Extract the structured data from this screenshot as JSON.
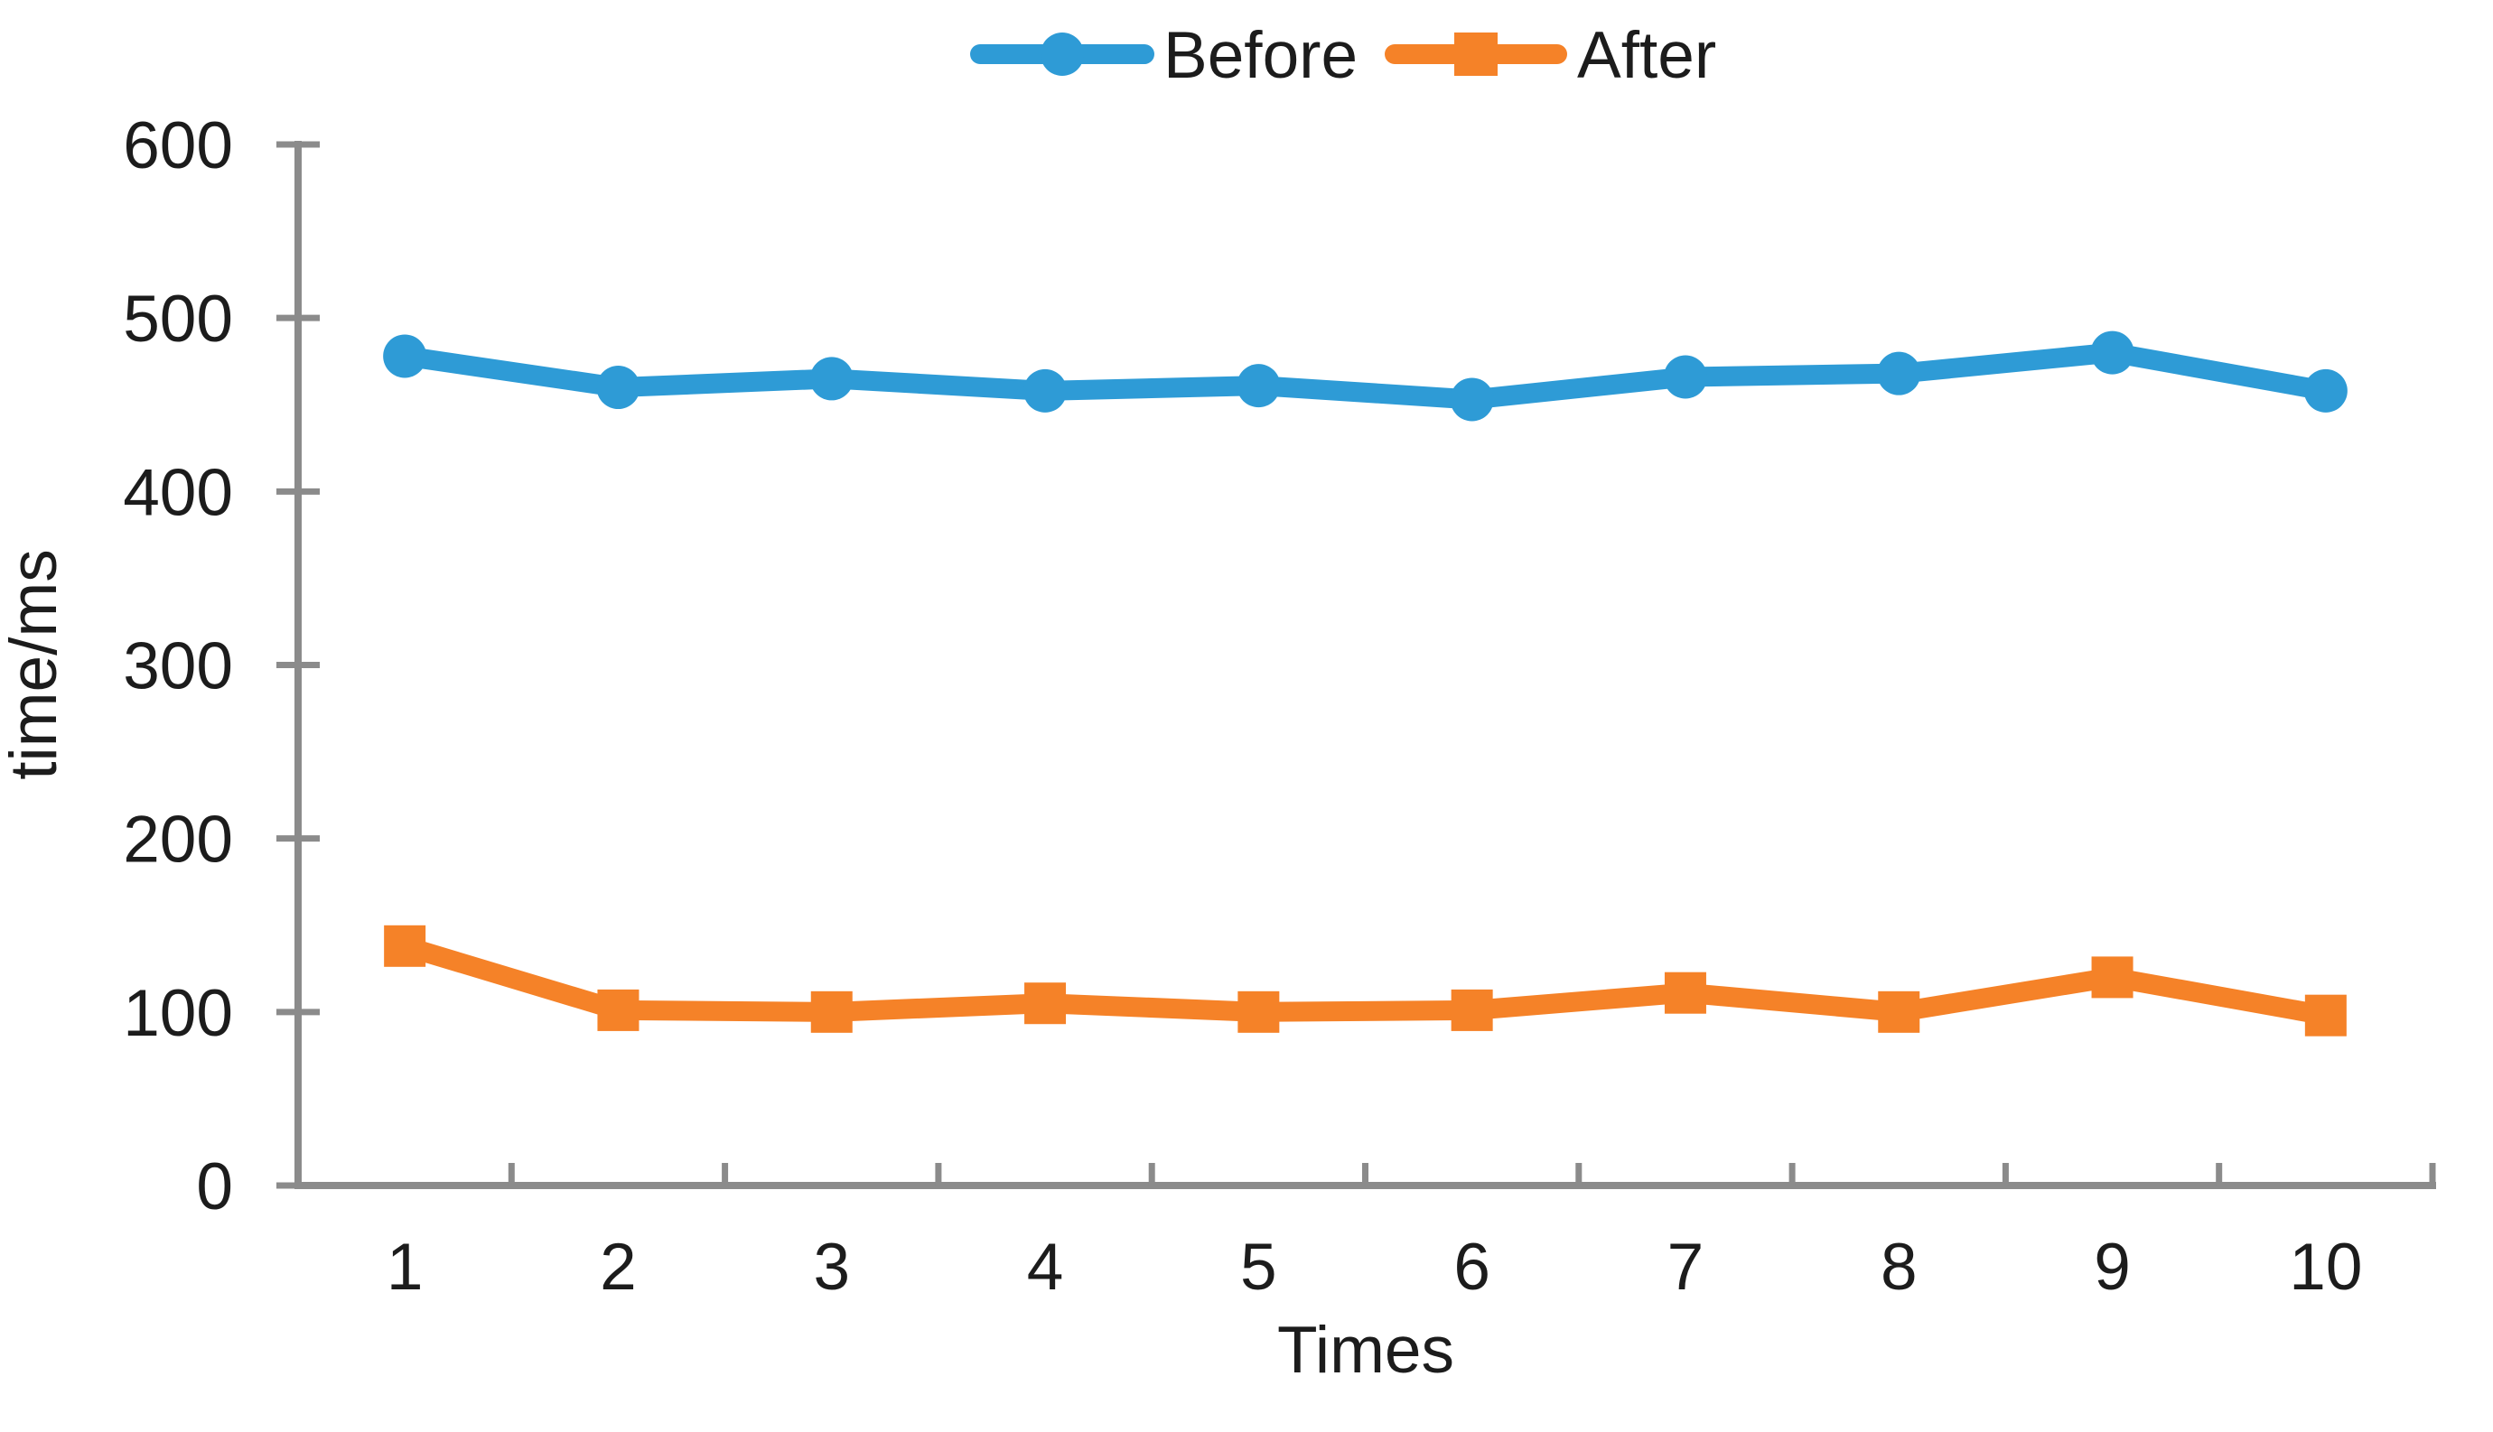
{
  "page": {
    "background": "#FFFFFF"
  },
  "chart_data": {
    "type": "line",
    "title": "",
    "categories": [
      "1",
      "2",
      "3",
      "4",
      "5",
      "6",
      "7",
      "8",
      "9",
      "10"
    ],
    "series": [
      {
        "name": "Before",
        "marker": "circle",
        "color": "#2E9BD6",
        "values": [
          478,
          460,
          465,
          458,
          461,
          453,
          466,
          468,
          480,
          458
        ]
      },
      {
        "name": "After",
        "marker": "square",
        "color": "#F58228",
        "values": [
          138,
          101,
          100,
          105,
          100,
          101,
          111,
          100,
          120,
          98
        ]
      }
    ],
    "xlabel": "Times",
    "ylabel": "time/ms",
    "ylim": [
      0,
      600
    ],
    "yticks": [
      0,
      100,
      200,
      300,
      400,
      500,
      600
    ],
    "grid": false,
    "legend_position": "top-center",
    "axis_color": "#8B8B8B",
    "text_color": "#1C1C1C"
  }
}
